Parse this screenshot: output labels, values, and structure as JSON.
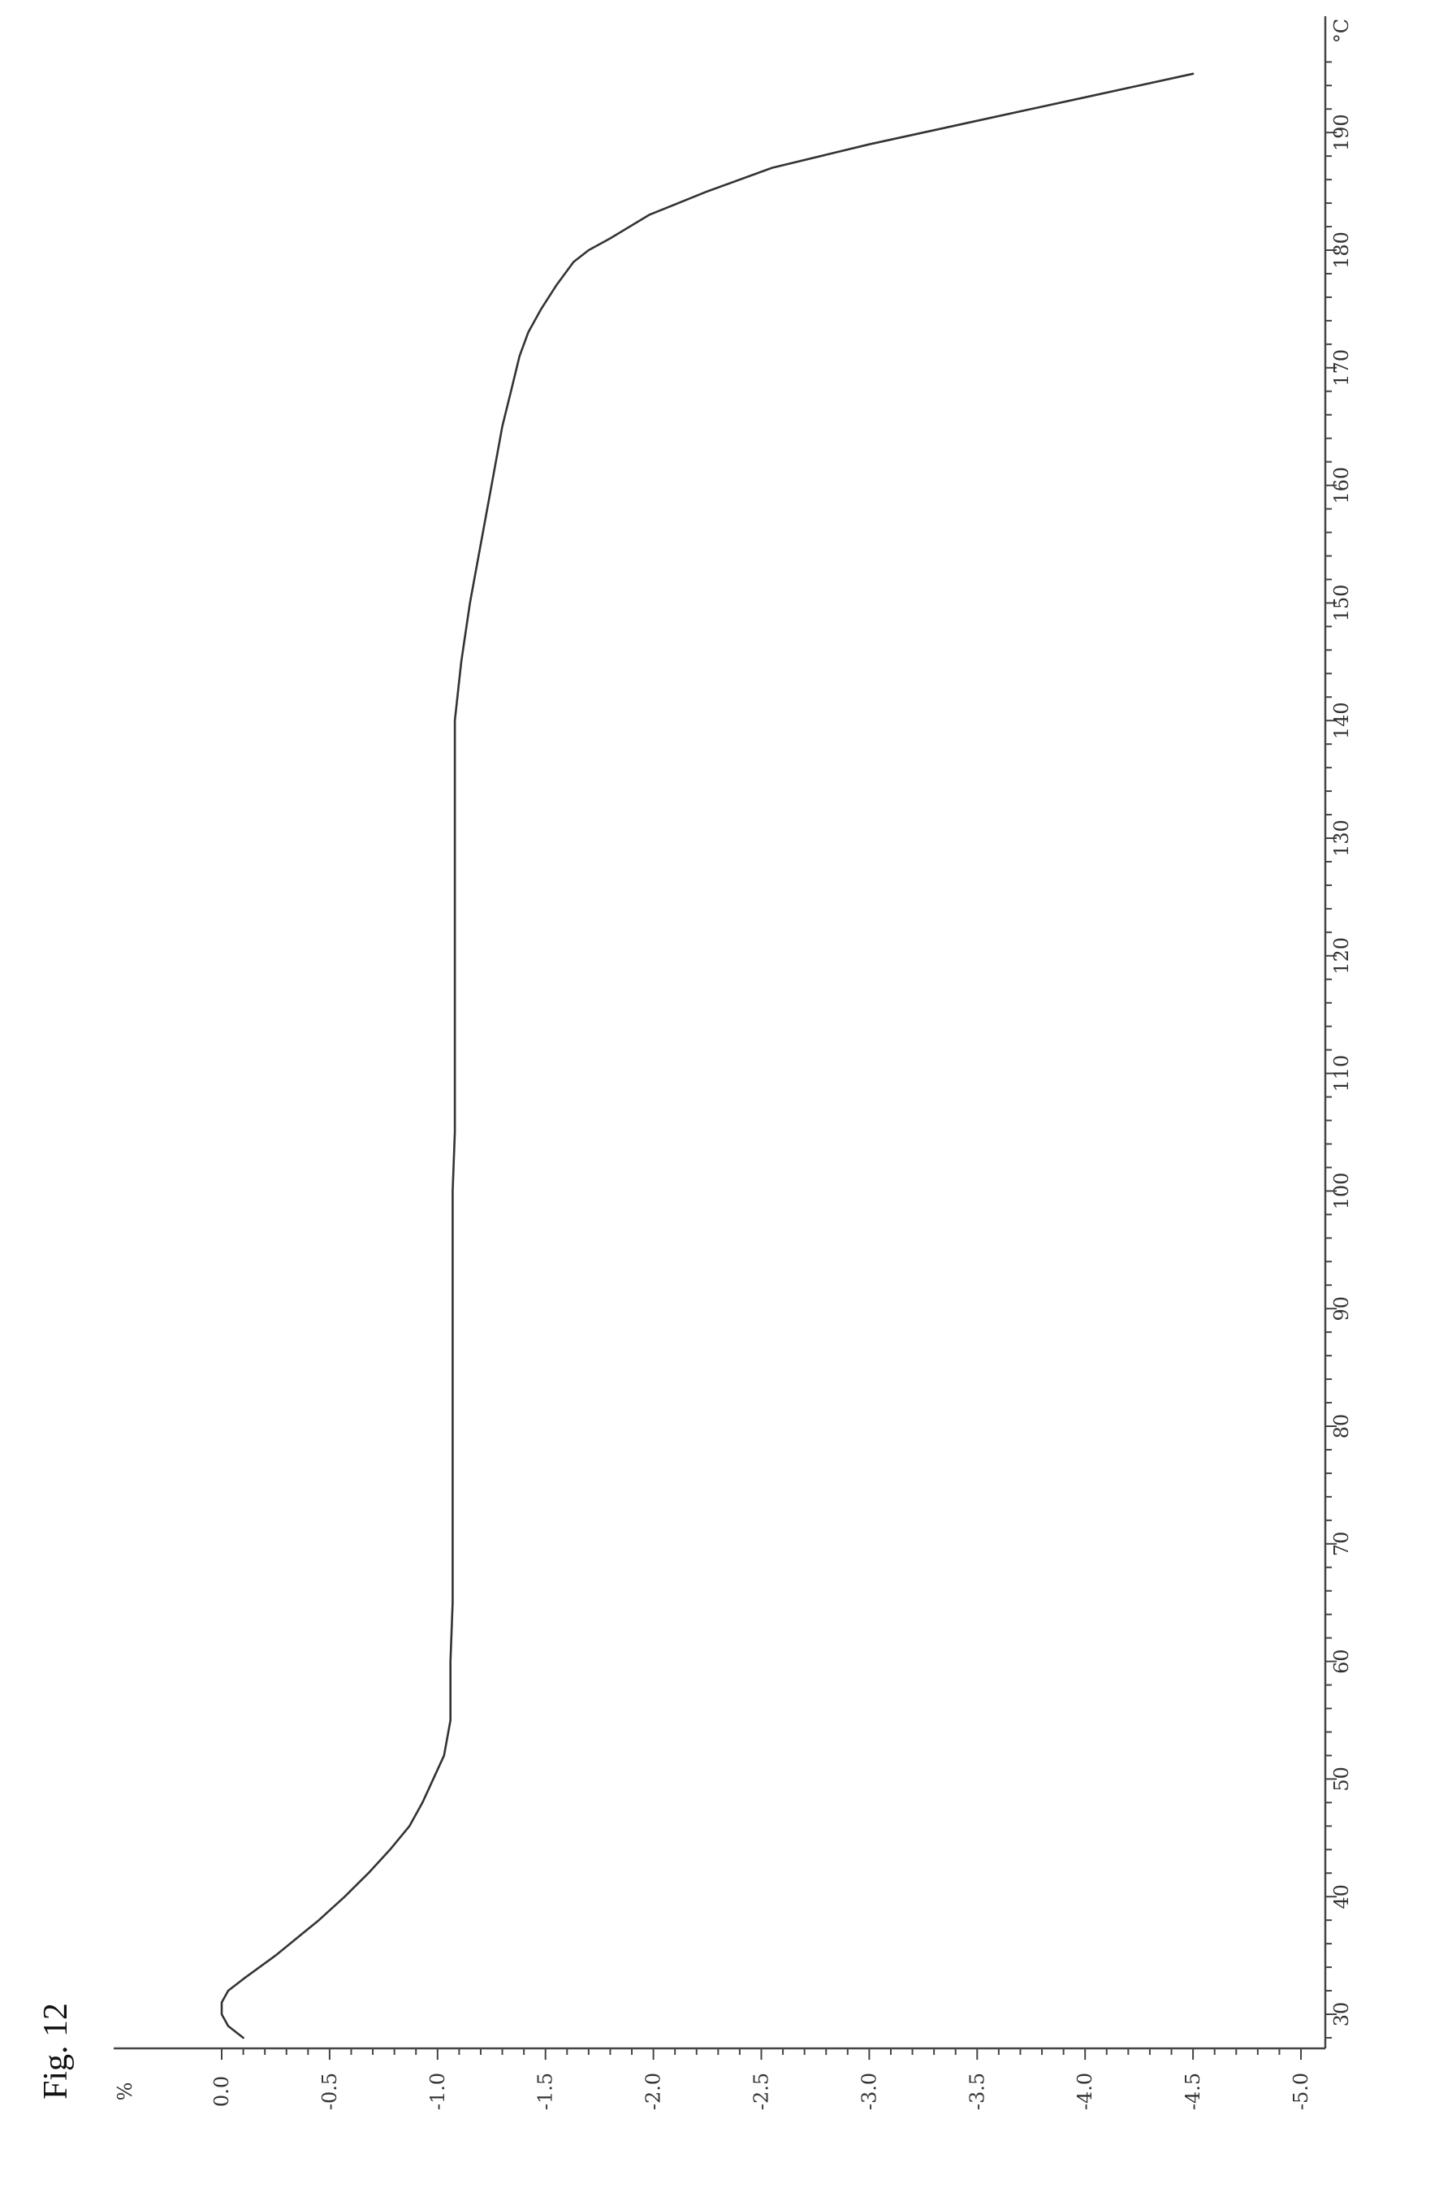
{
  "figure_label": "Fig. 12",
  "chart_data": {
    "type": "line",
    "title": "",
    "xlabel": "",
    "ylabel": "",
    "x_unit": "°C",
    "y_unit": "%",
    "xlim": [
      28,
      196
    ],
    "ylim": [
      -5.0,
      0.0
    ],
    "grid": false,
    "legend": "none",
    "orientation": "rotated 90° clockwise on page",
    "x_ticks": [
      "30",
      "40",
      "50",
      "60",
      "70",
      "80",
      "90",
      "100",
      "110",
      "120",
      "130",
      "140",
      "150",
      "160",
      "170",
      "180",
      "190"
    ],
    "y_ticks": [
      "0.0",
      "-0.5",
      "-1.0",
      "-1.5",
      "-2.0",
      "-2.5",
      "-3.0",
      "-3.5",
      "-4.0",
      "-4.5",
      "-5.0"
    ],
    "series": [
      {
        "color": "#333333",
        "x": [
          28,
          29,
          30,
          31,
          32,
          33,
          35,
          38,
          40,
          42,
          44,
          46,
          48,
          50,
          52,
          55,
          60,
          65,
          70,
          75,
          80,
          85,
          90,
          95,
          100,
          105,
          110,
          115,
          120,
          125,
          130,
          135,
          140,
          145,
          150,
          155,
          160,
          165,
          168,
          171,
          173,
          175,
          177,
          179,
          180,
          181,
          183,
          185,
          187,
          189,
          191,
          193,
          195
        ],
        "y": [
          -0.1,
          -0.03,
          0.0,
          0.0,
          -0.03,
          -0.1,
          -0.25,
          -0.45,
          -0.57,
          -0.68,
          -0.78,
          -0.87,
          -0.93,
          -0.98,
          -1.03,
          -1.06,
          -1.06,
          -1.07,
          -1.07,
          -1.07,
          -1.07,
          -1.07,
          -1.07,
          -1.07,
          -1.07,
          -1.08,
          -1.08,
          -1.08,
          -1.08,
          -1.08,
          -1.08,
          -1.08,
          -1.08,
          -1.11,
          -1.15,
          -1.2,
          -1.25,
          -1.3,
          -1.34,
          -1.38,
          -1.42,
          -1.48,
          -1.55,
          -1.63,
          -1.7,
          -1.8,
          -1.98,
          -2.25,
          -2.55,
          -3.0,
          -3.5,
          -4.0,
          -4.5
        ]
      }
    ]
  }
}
